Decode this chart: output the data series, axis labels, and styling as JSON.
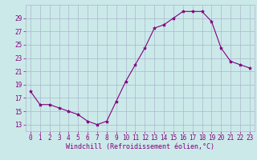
{
  "hours": [
    0,
    1,
    2,
    3,
    4,
    5,
    6,
    7,
    8,
    9,
    10,
    11,
    12,
    13,
    14,
    15,
    16,
    17,
    18,
    19,
    20,
    21,
    22,
    23
  ],
  "values": [
    18.0,
    16.0,
    16.0,
    15.5,
    15.0,
    14.5,
    13.5,
    13.0,
    13.5,
    16.5,
    19.5,
    22.0,
    24.5,
    27.5,
    28.0,
    29.0,
    30.0,
    30.0,
    30.0,
    28.5,
    24.5,
    22.5,
    22.0,
    21.5
  ],
  "line_color": "#800080",
  "marker": "*",
  "marker_size": 3,
  "bg_color": "#cce9e9",
  "grid_color": "#aab8cc",
  "ylabel_ticks": [
    13,
    15,
    17,
    19,
    21,
    23,
    25,
    27,
    29
  ],
  "ylim": [
    12.0,
    31.0
  ],
  "xlim": [
    -0.5,
    23.5
  ],
  "xlabel": "Windchill (Refroidissement éolien,°C)",
  "font_color": "#800080",
  "tick_fontsize": 5.5,
  "xlabel_fontsize": 6.0
}
